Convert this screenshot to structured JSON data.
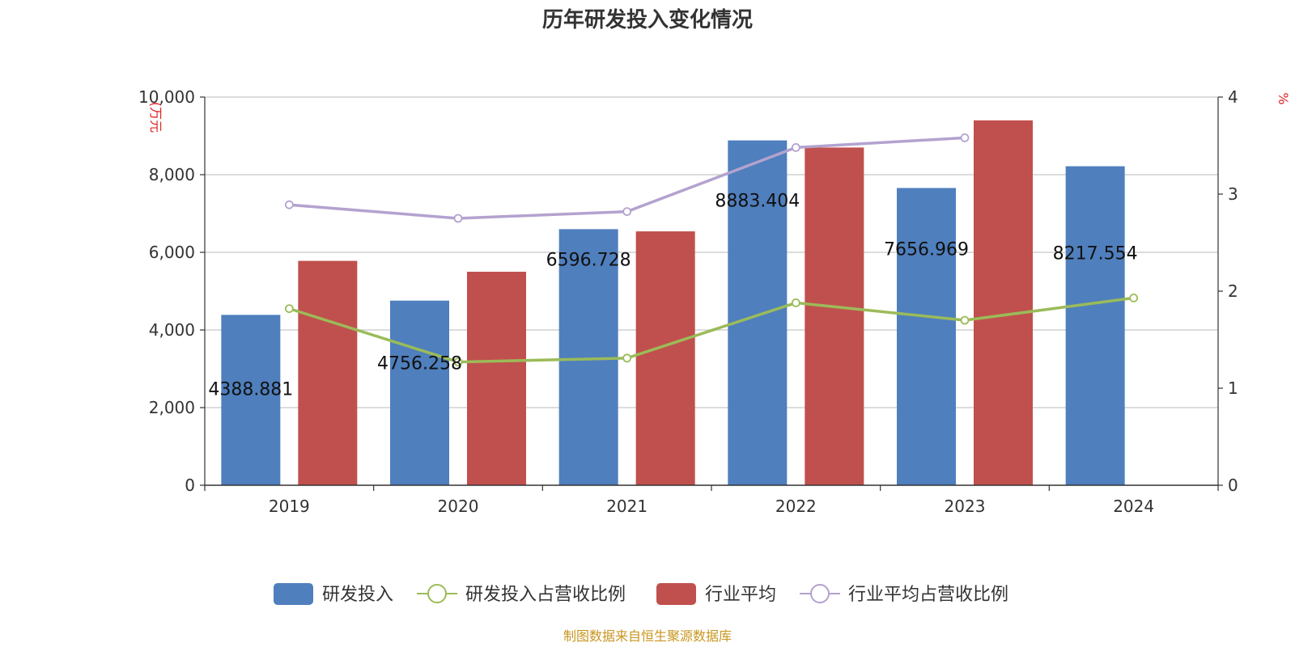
{
  "chart_data": {
    "type": "bar",
    "title": "历年研发投入变化情况",
    "categories": [
      "2019",
      "2020",
      "2021",
      "2022",
      "2023",
      "2024"
    ],
    "y_left": {
      "unit": "(万元",
      "ylim": [
        0,
        10000
      ],
      "ticks": [
        "0",
        "2,000",
        "4,000",
        "6,000",
        "8,000",
        "10,000"
      ]
    },
    "y_right": {
      "unit": "%",
      "ylim": [
        0,
        4
      ],
      "ticks": [
        "0",
        "1",
        "2",
        "3",
        "4"
      ]
    },
    "series": [
      {
        "name": "研发投入",
        "kind": "bar",
        "axis": "left",
        "color": "#4f7fbd",
        "values": [
          4388.881,
          4756.258,
          6596.728,
          8883.404,
          7656.969,
          8217.554
        ],
        "labels": [
          "4388.881",
          "4756.258",
          "6596.728",
          "8883.404",
          "7656.969",
          "8217.554"
        ]
      },
      {
        "name": "研发投入占营收比例",
        "kind": "line",
        "axis": "right",
        "color": "#9bbb59",
        "values": [
          1.82,
          1.27,
          1.31,
          1.88,
          1.7,
          1.93
        ]
      },
      {
        "name": "行业平均",
        "kind": "bar",
        "axis": "left",
        "color": "#c0504d",
        "values": [
          5780,
          5500,
          6540,
          8700,
          9400,
          null
        ]
      },
      {
        "name": "行业平均占营收比例",
        "kind": "line",
        "axis": "right",
        "color": "#b3a2cf",
        "values": [
          2.89,
          2.75,
          2.82,
          3.48,
          3.58,
          null
        ]
      }
    ],
    "source": "制图数据来自恒生聚源数据库"
  }
}
